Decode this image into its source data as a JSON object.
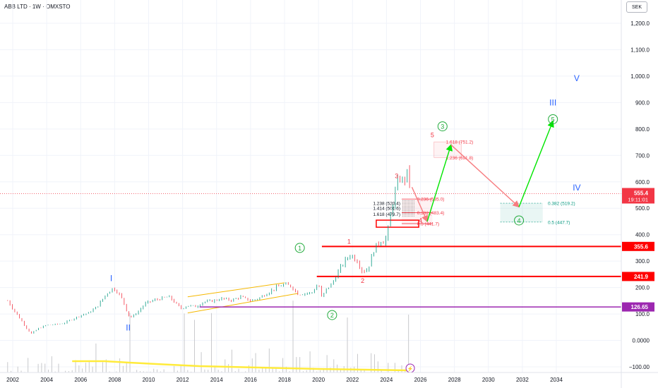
{
  "header": {
    "symbol_title": "ABB LTD · 1W · OMXSTO",
    "currency": "SEK"
  },
  "colors": {
    "up": "#089981",
    "down": "#f23645",
    "wave_green": "#22ab3c",
    "wave_blue": "#2962ff",
    "wave_red": "#f23645",
    "support": "#ff0000",
    "purple": "#9c27b0",
    "volume_ma": "#ffeb3b",
    "trend_channel": "#f5b800"
  },
  "chart_data": {
    "type": "line",
    "title": "ABB LTD · 1W · OMXSTO",
    "xlabel": "",
    "ylabel": "",
    "xlim": [
      2001.5,
      2036.5
    ],
    "ylim": [
      -110,
      1240
    ],
    "x_ticks": [
      "2002",
      "2004",
      "2006",
      "2008",
      "2010",
      "2012",
      "2014",
      "2016",
      "2018",
      "2020",
      "2022",
      "2024",
      "2026",
      "2028",
      "2030",
      "2032",
      "2034"
    ],
    "y_ticks": [
      {
        "v": 1200,
        "label": "1,200.0"
      },
      {
        "v": 1100,
        "label": "1,100.0"
      },
      {
        "v": 1000,
        "label": "1,000.0"
      },
      {
        "v": 900,
        "label": "900.0"
      },
      {
        "v": 800,
        "label": "800.0"
      },
      {
        "v": 700,
        "label": "700.0"
      },
      {
        "v": 600,
        "label": "600.0"
      },
      {
        "v": 500,
        "label": "500.0"
      },
      {
        "v": 400,
        "label": "400.0"
      },
      {
        "v": 300,
        "label": "300.0"
      },
      {
        "v": 200,
        "label": "200.0"
      },
      {
        "v": 100,
        "label": "100.0"
      },
      {
        "v": 0,
        "label": "0.0000"
      },
      {
        "v": -100,
        "label": "−100.00"
      }
    ],
    "series": [
      {
        "values": [
          [
            2001.7,
            150
          ],
          [
            2002.0,
            120
          ],
          [
            2002.4,
            85
          ],
          [
            2002.8,
            48
          ],
          [
            2003.1,
            25
          ],
          [
            2003.5,
            45
          ],
          [
            2004.0,
            58
          ],
          [
            2004.5,
            60
          ],
          [
            2005.0,
            65
          ],
          [
            2005.5,
            80
          ],
          [
            2006.0,
            95
          ],
          [
            2006.5,
            105
          ],
          [
            2007.0,
            130
          ],
          [
            2007.5,
            175
          ],
          [
            2007.9,
            198
          ],
          [
            2008.2,
            182
          ],
          [
            2008.5,
            150
          ],
          [
            2008.8,
            95
          ],
          [
            2009.0,
            88
          ],
          [
            2009.4,
            110
          ],
          [
            2009.8,
            140
          ],
          [
            2010.3,
            152
          ],
          [
            2010.7,
            158
          ],
          [
            2011.2,
            165
          ],
          [
            2011.6,
            140
          ],
          [
            2011.9,
            120
          ],
          [
            2012.3,
            132
          ],
          [
            2012.8,
            128
          ],
          [
            2013.2,
            145
          ],
          [
            2013.8,
            150
          ],
          [
            2014.3,
            158
          ],
          [
            2014.9,
            152
          ],
          [
            2015.4,
            165
          ],
          [
            2016.0,
            150
          ],
          [
            2016.5,
            160
          ],
          [
            2017.0,
            180
          ],
          [
            2017.5,
            200
          ],
          [
            2018.0,
            212
          ],
          [
            2018.4,
            205
          ],
          [
            2018.8,
            175
          ],
          [
            2019.2,
            178
          ],
          [
            2019.6,
            180
          ],
          [
            2020.0,
            215
          ],
          [
            2020.2,
            158
          ],
          [
            2020.4,
            190
          ],
          [
            2020.8,
            215
          ],
          [
            2021.2,
            265
          ],
          [
            2021.6,
            305
          ],
          [
            2021.9,
            325
          ],
          [
            2022.3,
            300
          ],
          [
            2022.6,
            260
          ],
          [
            2022.9,
            270
          ],
          [
            2023.3,
            350
          ],
          [
            2023.7,
            380
          ],
          [
            2023.9,
            372
          ],
          [
            2024.1,
            420
          ],
          [
            2024.4,
            530
          ],
          [
            2024.6,
            585
          ],
          [
            2024.8,
            615
          ],
          [
            2025.0,
            598
          ],
          [
            2025.2,
            635
          ],
          [
            2025.35,
            606
          ],
          [
            2025.45,
            555.4
          ]
        ]
      }
    ],
    "trend_channel": {
      "upper": [
        [
          2012.3,
          165
        ],
        [
          2018.0,
          218
        ]
      ],
      "lower": [
        [
          2012.3,
          104
        ],
        [
          2018.8,
          178
        ]
      ]
    },
    "horizontal_levels": [
      {
        "value": 355.6,
        "label": "355.6",
        "from_x": 2020.2,
        "style": "support"
      },
      {
        "value": 241.9,
        "label": "241.9",
        "from_x": 2019.9,
        "style": "support"
      },
      {
        "value": 126.65,
        "label": "126.65",
        "from_x": 2013.0,
        "style": "purple"
      }
    ],
    "current_price": {
      "value": 555.4,
      "label": "555.4",
      "countdown": "19:11:01"
    },
    "wave_labels": [
      {
        "text": "I",
        "x": 2007.8,
        "y": 235,
        "color": "blue"
      },
      {
        "text": "II",
        "x": 2008.8,
        "y": 48,
        "color": "blue"
      },
      {
        "text": "III",
        "x": 2033.8,
        "y": 900,
        "color": "blue"
      },
      {
        "text": "IV",
        "x": 2035.2,
        "y": 578,
        "color": "blue"
      },
      {
        "text": "V",
        "x": 2035.2,
        "y": 992,
        "color": "blue"
      },
      {
        "text": "1",
        "x": 2018.9,
        "y": 350,
        "color": "green",
        "circled": true
      },
      {
        "text": "2",
        "x": 2020.8,
        "y": 96,
        "color": "green",
        "circled": true
      },
      {
        "text": "3",
        "x": 2027.3,
        "y": 810,
        "color": "green",
        "circled": true
      },
      {
        "text": "4",
        "x": 2031.8,
        "y": 454,
        "color": "green",
        "circled": true
      },
      {
        "text": "5",
        "x": 2033.8,
        "y": 837,
        "color": "green",
        "circled": true
      },
      {
        "text": "1",
        "x": 2021.8,
        "y": 377,
        "color": "red"
      },
      {
        "text": "2",
        "x": 2022.6,
        "y": 228,
        "color": "red"
      },
      {
        "text": "3",
        "x": 2024.6,
        "y": 625,
        "color": "red"
      },
      {
        "text": "4",
        "x": 2026.0,
        "y": 457,
        "color": "red"
      },
      {
        "text": "5",
        "x": 2026.7,
        "y": 780,
        "color": "red"
      }
    ],
    "fib_retracement": [
      {
        "label": "0.236 (535.0)",
        "value": 535.0
      },
      {
        "label": "0.382 (483.4)",
        "value": 483.4
      },
      {
        "label": "0.5 (441.7)",
        "value": 441.7
      }
    ],
    "fib_extension_box": [
      {
        "label": "1.238 (520.4)",
        "value": 520.4
      },
      {
        "label": "1.414 (501.6)",
        "value": 501.6
      },
      {
        "label": "1.618 (479.7)",
        "value": 479.7
      }
    ],
    "fib_upper": [
      {
        "label": "1.618 (751.2)",
        "value": 751.2
      },
      {
        "label": "1.236 (691.8)",
        "value": 691.8
      }
    ],
    "fib_lower_right": [
      {
        "label": "0.382 (519.2)",
        "value": 519.2
      },
      {
        "label": "0.5 (447.7)",
        "value": 447.7
      }
    ],
    "projection_paths": [
      {
        "color": "red",
        "points": [
          [
            2025.5,
            580
          ],
          [
            2026.4,
            450
          ]
        ]
      },
      {
        "color": "green",
        "points": [
          [
            2026.4,
            450
          ],
          [
            2027.8,
            740
          ]
        ]
      },
      {
        "color": "red",
        "points": [
          [
            2027.8,
            740
          ],
          [
            2031.8,
            505
          ]
        ]
      },
      {
        "color": "green",
        "points": [
          [
            2031.8,
            505
          ],
          [
            2033.8,
            830
          ]
        ]
      }
    ]
  }
}
